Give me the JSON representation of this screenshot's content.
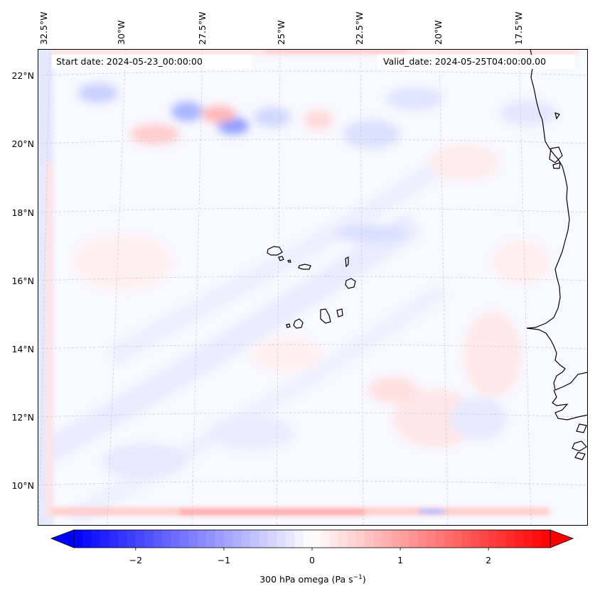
{
  "map": {
    "start_date_text": "Start date: 2024-05-23_00:00:00",
    "valid_date_text": "Valid_date: 2024-05-25T04:00:00.00",
    "lon_labels": [
      "32.5°W",
      "30°W",
      "27.5°W",
      "25°W",
      "22.5°W",
      "20°W",
      "17.5°W"
    ],
    "lat_labels": [
      "22°N",
      "20°N",
      "18°N",
      "16°N",
      "14°N",
      "12°N",
      "10°N"
    ],
    "field_name": "300 hPa omega",
    "coast_color": "#000000",
    "grid_color": "#b0b0b0"
  },
  "colorbar": {
    "label_text": "300 hPa omega (Pa s",
    "label_sup": "−1",
    "label_close": ")",
    "ticks": [
      "−2",
      "−1",
      "0",
      "1",
      "2"
    ],
    "min": -2.7,
    "max": 2.7,
    "tick_values": [
      -2,
      -1,
      0,
      1,
      2
    ],
    "low_color": "#0000ff",
    "mid_color": "#ffffff",
    "high_color": "#ff0000"
  }
}
